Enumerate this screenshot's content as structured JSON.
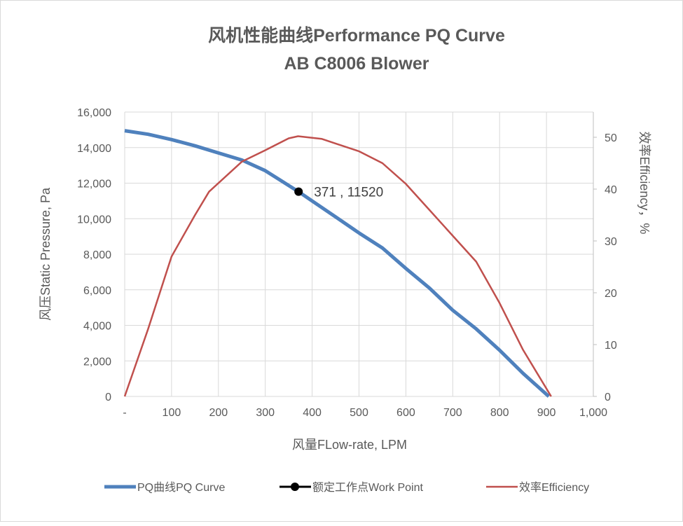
{
  "chart_data": {
    "type": "line",
    "title": "风机性能曲线Performance PQ Curve",
    "subtitle": "AB C8006 Blower",
    "xlabel": "风量FLow-rate, LPM",
    "ylabel": "风压Static Pressure, Pa",
    "y2label": "效率Efficiency，%",
    "xlim": [
      0,
      1000
    ],
    "ylim": [
      0,
      16000
    ],
    "y2lim": [
      0,
      55
    ],
    "grid": true,
    "legend": "bottom",
    "x_ticks": [
      "-",
      "100",
      "200",
      "300",
      "400",
      "500",
      "600",
      "700",
      "800",
      "900",
      "1,000"
    ],
    "y_ticks": [
      "0",
      "2,000",
      "4,000",
      "6,000",
      "8,000",
      "10,000",
      "12,000",
      "14,000",
      "16,000"
    ],
    "y2_ticks": [
      "0",
      "10",
      "20",
      "30",
      "40",
      "50"
    ],
    "series": [
      {
        "name": "PQ曲线PQ  Curve",
        "axis": "left",
        "color": "#4f81bd",
        "x": [
          0,
          50,
          100,
          150,
          200,
          250,
          300,
          371,
          400,
          450,
          500,
          550,
          600,
          650,
          700,
          750,
          800,
          850,
          905
        ],
        "y": [
          14950,
          14750,
          14450,
          14100,
          13700,
          13300,
          12700,
          11520,
          11000,
          10100,
          9200,
          8350,
          7200,
          6100,
          4850,
          3800,
          2600,
          1300,
          0
        ]
      },
      {
        "name": "额定工作点Work Point",
        "axis": "left",
        "color": "#000000",
        "marker": true,
        "x": [
          371
        ],
        "y": [
          11520
        ],
        "label": "371 , 11520"
      },
      {
        "name": "效率Efficiency",
        "axis": "right",
        "color": "#c0504d",
        "x": [
          0,
          50,
          100,
          150,
          180,
          250,
          300,
          350,
          370,
          420,
          450,
          500,
          550,
          600,
          650,
          700,
          750,
          800,
          850,
          910
        ],
        "y": [
          0,
          13,
          27,
          35,
          39.5,
          45.3,
          47.5,
          49.8,
          50.2,
          49.7,
          48.8,
          47.3,
          45,
          41,
          36,
          31,
          26,
          18,
          9,
          0
        ]
      }
    ]
  }
}
